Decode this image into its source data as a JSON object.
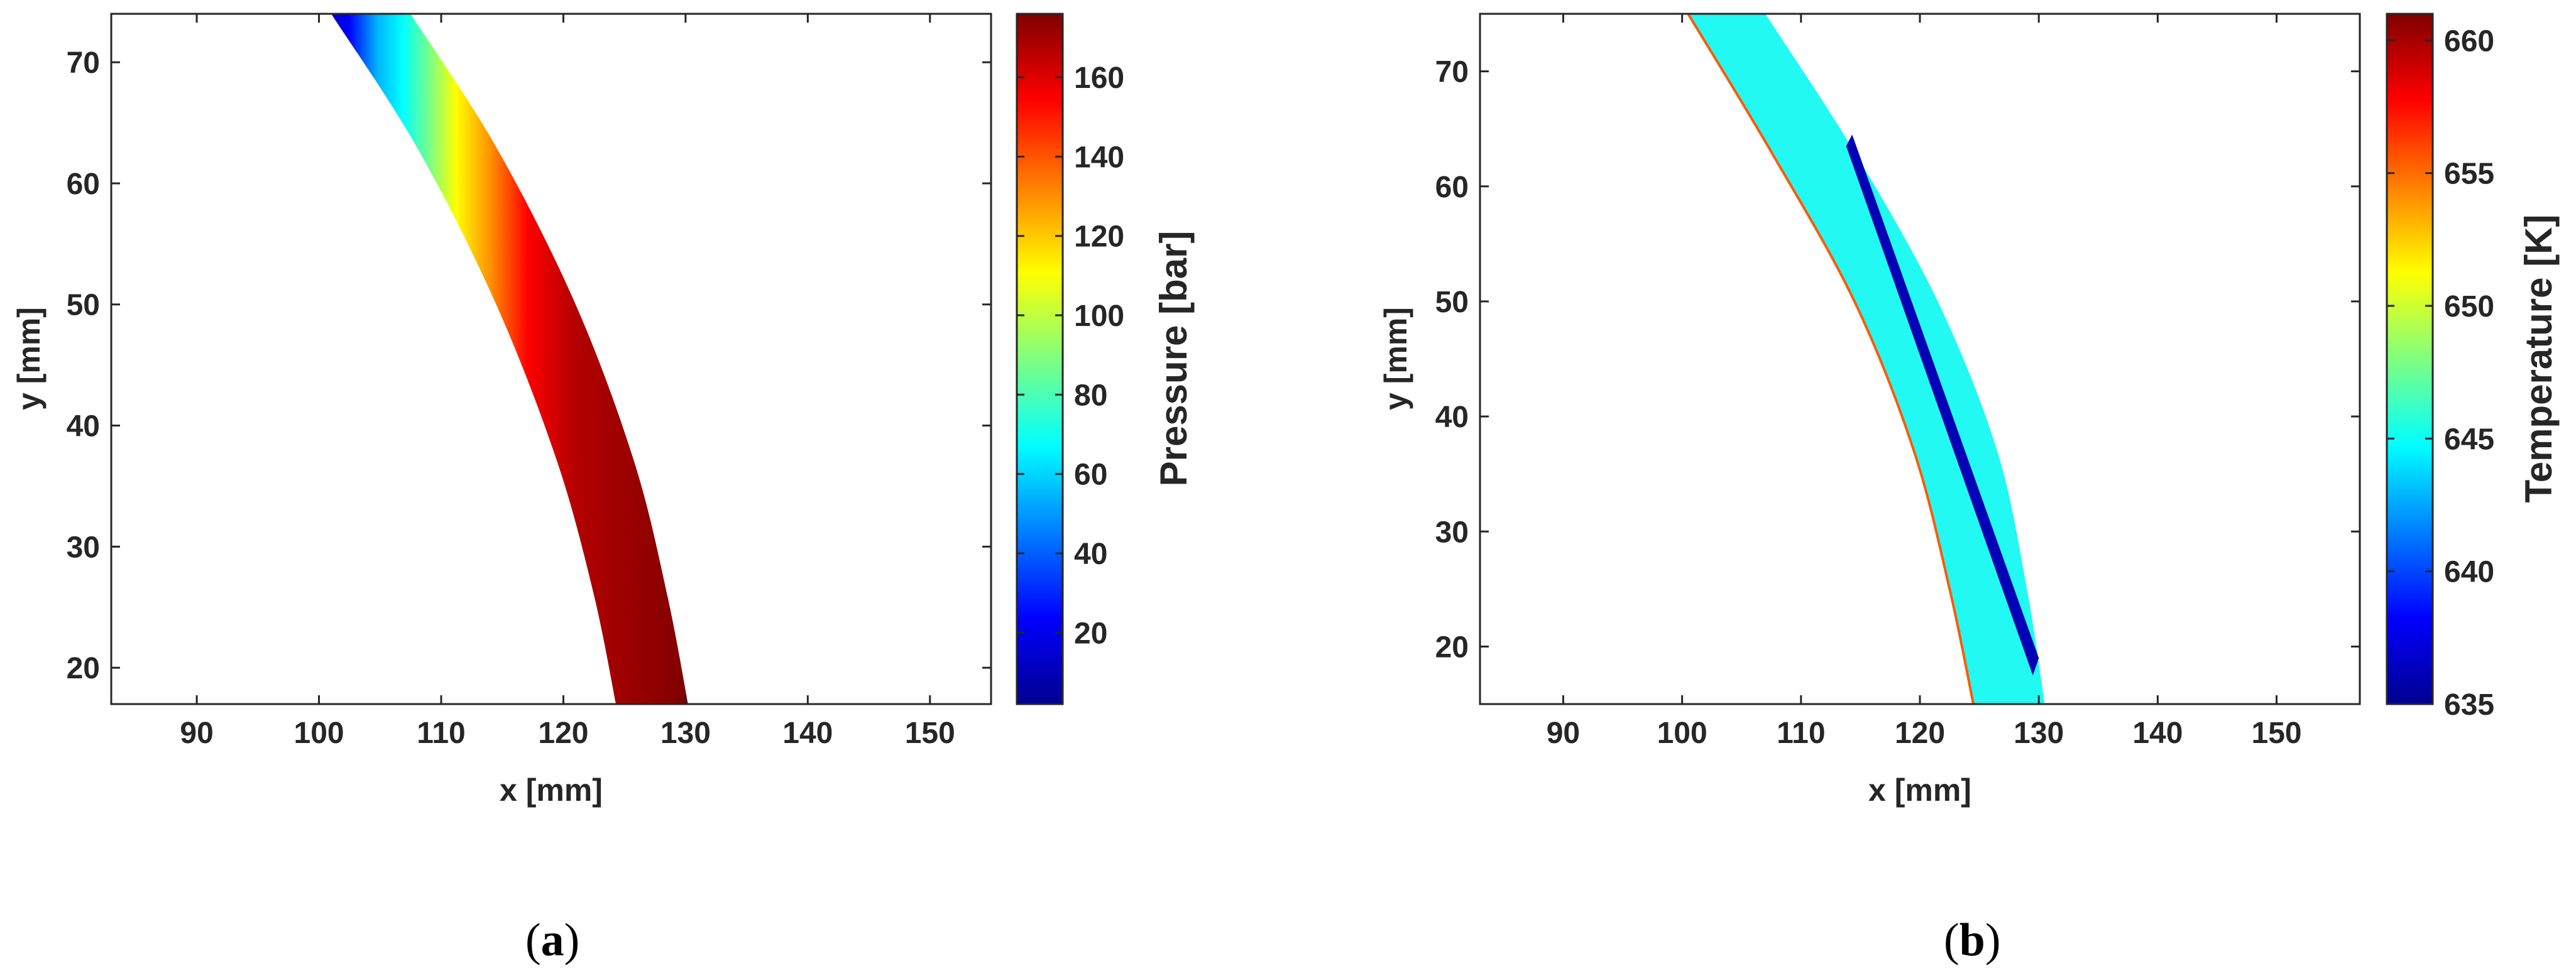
{
  "chart_data": [
    {
      "type": "heatmap",
      "panel_label": "a",
      "xlabel": "x [mm]",
      "ylabel": "y [mm]",
      "xlim": [
        83,
        155
      ],
      "ylim": [
        17,
        74
      ],
      "xticks": [
        90,
        100,
        110,
        120,
        130,
        140,
        150
      ],
      "yticks": [
        20,
        30,
        40,
        50,
        60,
        70
      ],
      "grid": false,
      "region": {
        "inner_edge": {
          "x": [
            101.0,
            108.0,
            114.5,
            119.5,
            122.5,
            124.3
          ],
          "y": [
            74,
            63,
            50,
            37,
            26,
            17
          ]
        },
        "outer_edge": {
          "x": [
            107.5,
            114.5,
            121.0,
            125.8,
            128.5,
            130.2
          ],
          "y": [
            74,
            63,
            50,
            37,
            26,
            17
          ]
        },
        "gradient": "inner edge low, rising across the band to the high value",
        "inner_value": 2,
        "outer_value": 176
      },
      "colorbar": {
        "label": "Pressure [bar]",
        "colormap": "jet",
        "range": [
          2,
          176
        ],
        "ticks": [
          20,
          40,
          60,
          80,
          100,
          120,
          140,
          160
        ]
      }
    },
    {
      "type": "heatmap",
      "panel_label": "b",
      "xlabel": "x [mm]",
      "ylabel": "y [mm]",
      "xlim": [
        83,
        157
      ],
      "ylim": [
        15,
        75
      ],
      "xticks": [
        90,
        100,
        110,
        120,
        130,
        140,
        150
      ],
      "yticks": [
        20,
        30,
        40,
        50,
        60,
        70
      ],
      "grid": false,
      "region": {
        "inner_edge": {
          "x": [
            100.5,
            107.5,
            114.5,
            119.5,
            122.5,
            124.5
          ],
          "y": [
            75,
            63,
            50,
            37,
            25,
            15
          ]
        },
        "outer_edge": {
          "x": [
            107.0,
            114.5,
            121.5,
            126.5,
            129.0,
            130.5
          ],
          "y": [
            75,
            63,
            50,
            37,
            25,
            15
          ]
        },
        "bulk_value": 645.2,
        "inner_edge_value": 656,
        "cold_streak": {
          "x": [
            114.3,
            130.0,
            129.5,
            113.8
          ],
          "y": [
            64.5,
            19.0,
            17.5,
            63.5
          ],
          "value": 635.2
        }
      },
      "colorbar": {
        "label": "Temperature [K]",
        "colormap": "jet",
        "range": [
          635,
          661
        ],
        "ticks": [
          635,
          640,
          645,
          650,
          655,
          660
        ]
      }
    }
  ]
}
